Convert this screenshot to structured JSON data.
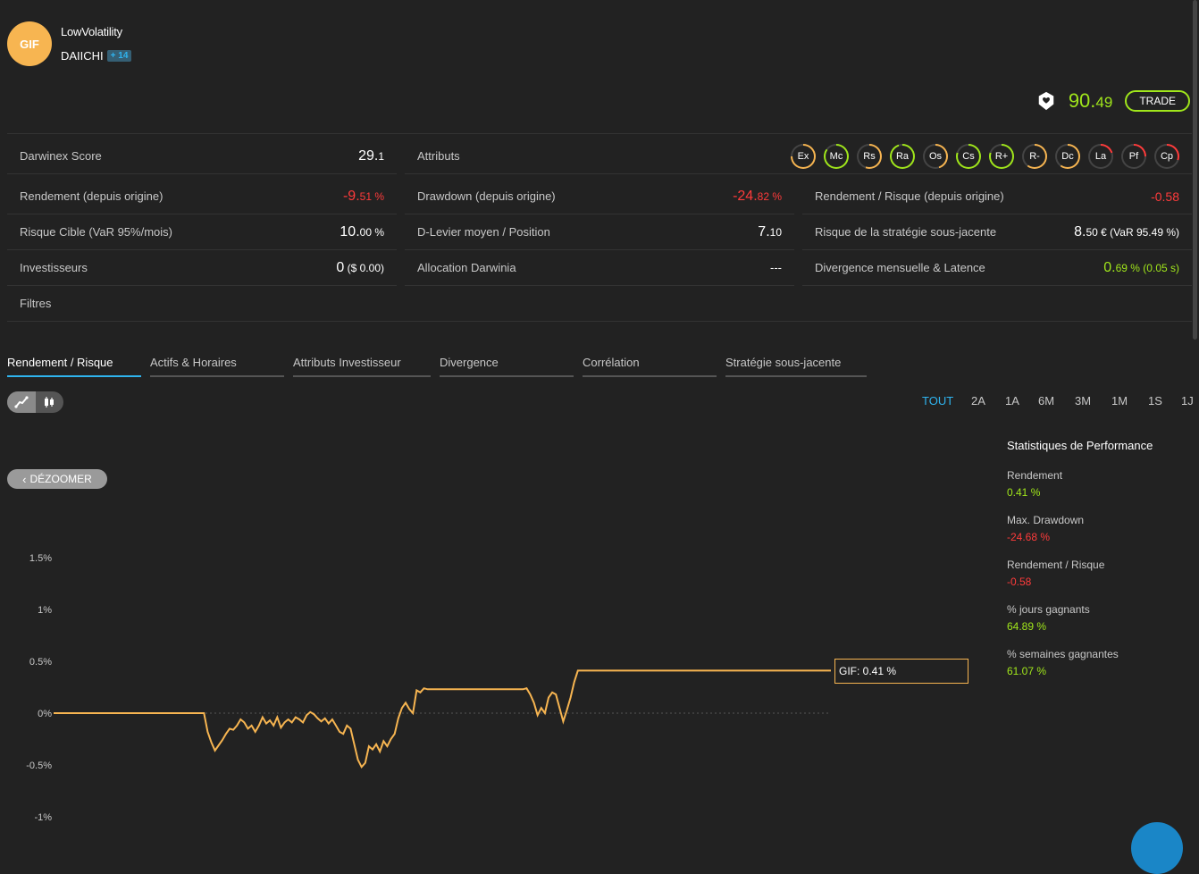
{
  "header": {
    "avatar_text": "GIF",
    "strategy_name": "LowVolatility",
    "provider": "DAIICHI",
    "badge": "+ 14",
    "score_int": "90.",
    "score_dec": "49",
    "trade_label": "TRADE"
  },
  "metrics": {
    "darwinex_score": {
      "label": "Darwinex Score",
      "value_int": "29.",
      "value_dec": "1"
    },
    "attributes_label": "Attributs",
    "attributes": [
      {
        "code": "Ex",
        "color": "#f7b551",
        "level": 0.75
      },
      {
        "code": "Mc",
        "color": "#a0e61b",
        "level": 0.85
      },
      {
        "code": "Rs",
        "color": "#f7b551",
        "level": 0.55
      },
      {
        "code": "Ra",
        "color": "#a0e61b",
        "level": 0.95
      },
      {
        "code": "Os",
        "color": "#f7b551",
        "level": 0.45
      },
      {
        "code": "Cs",
        "color": "#a0e61b",
        "level": 0.8
      },
      {
        "code": "R+",
        "color": "#a0e61b",
        "level": 0.8
      },
      {
        "code": "R-",
        "color": "#f7b551",
        "level": 0.6
      },
      {
        "code": "Dc",
        "color": "#f7b551",
        "level": 0.6
      },
      {
        "code": "La",
        "color": "#ff3b3b",
        "level": 0.2
      },
      {
        "code": "Pf",
        "color": "#ff3b3b",
        "level": 0.25
      },
      {
        "code": "Cp",
        "color": "#ff3b3b",
        "level": 0.3
      }
    ],
    "return_origin": {
      "label": "Rendement (depuis origine)",
      "value_int": "-9.",
      "value_dec": "51 %"
    },
    "drawdown_origin": {
      "label": "Drawdown (depuis origine)",
      "value_int": "-24.",
      "value_dec": "82 %"
    },
    "return_risk_origin": {
      "label": "Rendement / Risque (depuis origine)",
      "value": "-0.58"
    },
    "target_risk": {
      "label": "Risque Cible (VaR 95%/mois)",
      "value_int": "10.",
      "value_dec": "00 %"
    },
    "leverage": {
      "label": "D-Levier moyen / Position",
      "value_int": "7.",
      "value_dec": "10"
    },
    "underlying_risk": {
      "label": "Risque de la stratégie sous-jacente",
      "value_int": "8.",
      "value_dec": "50 € (VaR 95.49 %)"
    },
    "investors": {
      "label": "Investisseurs",
      "value_int": "0",
      "value_dec": " ($ 0.00)"
    },
    "allocation": {
      "label": "Allocation Darwinia",
      "value": "---"
    },
    "divergence": {
      "label": "Divergence mensuelle & Latence",
      "value_int": "0.",
      "value_dec": "69 % (0.05 s)"
    },
    "filters_label": "Filtres"
  },
  "tabs": [
    {
      "label": "Rendement / Risque",
      "active": true
    },
    {
      "label": "Actifs & Horaires"
    },
    {
      "label": "Attributs Investisseur"
    },
    {
      "label": "Divergence"
    },
    {
      "label": "Corrélation"
    },
    {
      "label": "Stratégie sous-jacente"
    }
  ],
  "periods": [
    "TOUT",
    "2A",
    "1A",
    "6M",
    "3M",
    "1M",
    "1S",
    "1J"
  ],
  "active_period": "TOUT",
  "dezoom_label": "DÉZOOMER",
  "stats": {
    "title": "Statistiques de Performance",
    "items": [
      {
        "label": "Rendement",
        "value": "0.41 %",
        "color": "#a0e61b"
      },
      {
        "label": "Max. Drawdown",
        "value": "-24.68 %",
        "color": "#ff3b3b"
      },
      {
        "label": "Rendement / Risque",
        "value": "-0.58",
        "color": "#ff3b3b"
      },
      {
        "label": "% jours gagnants",
        "value": "64.89 %",
        "color": "#a0e61b"
      },
      {
        "label": "% semaines gagnantes",
        "value": "61.07 %",
        "color": "#a0e61b"
      }
    ]
  },
  "chart_data": {
    "type": "line",
    "yticks": [
      "1.5%",
      "1%",
      "0.5%",
      "0%",
      "-0.5%",
      "-1%"
    ],
    "ytick_values": [
      1.5,
      1,
      0.5,
      0,
      -0.5,
      -1
    ],
    "ylim": [
      -1,
      1.5
    ],
    "series": [
      {
        "name": "GIF",
        "color": "#f7b551",
        "values": [
          0,
          0,
          0,
          0,
          0,
          0,
          0,
          0,
          0,
          0,
          0,
          0,
          0,
          0,
          0,
          0,
          0,
          0,
          0,
          0,
          0,
          0,
          0,
          0,
          0,
          0,
          0,
          0,
          0,
          0,
          0,
          0,
          0,
          0,
          0,
          0,
          0,
          0,
          0,
          0,
          0,
          0,
          -0.18,
          -0.28,
          -0.36,
          -0.31,
          -0.26,
          -0.2,
          -0.15,
          -0.16,
          -0.12,
          -0.06,
          -0.09,
          -0.15,
          -0.12,
          -0.18,
          -0.12,
          -0.04,
          -0.1,
          -0.07,
          -0.12,
          -0.04,
          -0.14,
          -0.09,
          -0.06,
          -0.09,
          -0.04,
          -0.06,
          -0.09,
          -0.02,
          0.01,
          -0.01,
          -0.05,
          -0.08,
          -0.05,
          -0.1,
          -0.06,
          -0.12,
          -0.18,
          -0.2,
          -0.12,
          -0.15,
          -0.3,
          -0.45,
          -0.52,
          -0.48,
          -0.32,
          -0.35,
          -0.3,
          -0.37,
          -0.27,
          -0.32,
          -0.25,
          -0.2,
          -0.05,
          0.05,
          0.1,
          0.04,
          0.0,
          0.22,
          0.2,
          0.24,
          0.23,
          0.23,
          0.23,
          0.23,
          0.23,
          0.23,
          0.23,
          0.23,
          0.23,
          0.23,
          0.23,
          0.23,
          0.23,
          0.23,
          0.23,
          0.23,
          0.23,
          0.23,
          0.23,
          0.23,
          0.23,
          0.23,
          0.23,
          0.23,
          0.23,
          0.23,
          0.23,
          0.24,
          0.18,
          0.1,
          -0.02,
          0.05,
          0.0,
          0.15,
          0.2,
          0.18,
          0.05,
          -0.08,
          0.03,
          0.15,
          0.3,
          0.41,
          0.41,
          0.41,
          0.41,
          0.41,
          0.41,
          0.41,
          0.41,
          0.41,
          0.41,
          0.41,
          0.41,
          0.41,
          0.41,
          0.41,
          0.41,
          0.41,
          0.41,
          0.41,
          0.41,
          0.41,
          0.41,
          0.41,
          0.41,
          0.41,
          0.41,
          0.41,
          0.41,
          0.41,
          0.41,
          0.41,
          0.41,
          0.41,
          0.41,
          0.41,
          0.41,
          0.41,
          0.41,
          0.41,
          0.41,
          0.41,
          0.41,
          0.41,
          0.41,
          0.41,
          0.41,
          0.41,
          0.41,
          0.41,
          0.41,
          0.41,
          0.41,
          0.41,
          0.41,
          0.41,
          0.41,
          0.41,
          0.41,
          0.41,
          0.41,
          0.41,
          0.41,
          0.41,
          0.41,
          0.41,
          0.41,
          0.41,
          0.41,
          0.41,
          0.41
        ]
      }
    ],
    "tooltip": "GIF: 0.41 %"
  }
}
